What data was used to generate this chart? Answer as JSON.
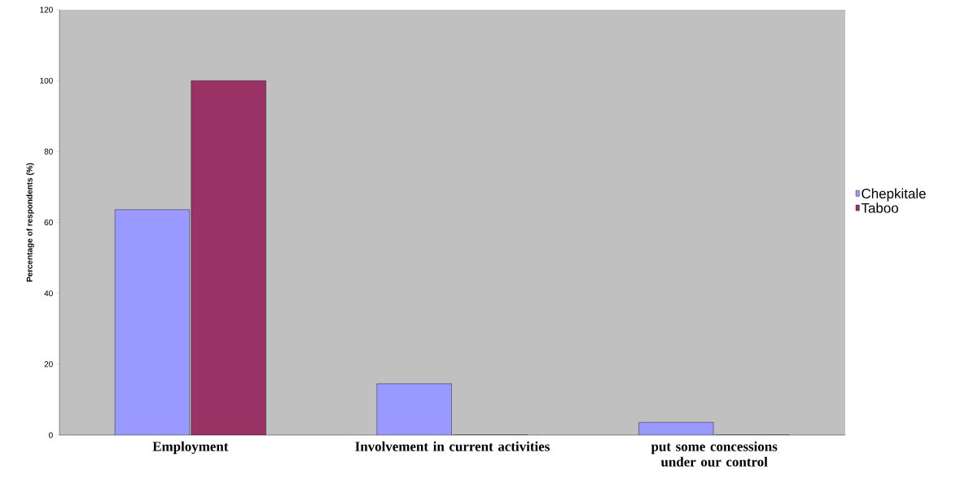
{
  "chart_data": {
    "type": "bar",
    "ylabel": "Percentage of respondents (%)",
    "categories": [
      "Employment",
      "Involvement in current activities",
      "put some concessions under our control"
    ],
    "series": [
      {
        "name": "Chepkitale",
        "color": "#9999ff",
        "values": [
          63.6,
          14.5,
          3.6
        ]
      },
      {
        "name": "Taboo",
        "color": "#993366",
        "values": [
          100,
          0,
          0
        ]
      }
    ],
    "ylim": [
      0,
      120
    ],
    "yticks": [
      0,
      20,
      40,
      60,
      80,
      100,
      120
    ],
    "grid": false,
    "legend": "right"
  }
}
